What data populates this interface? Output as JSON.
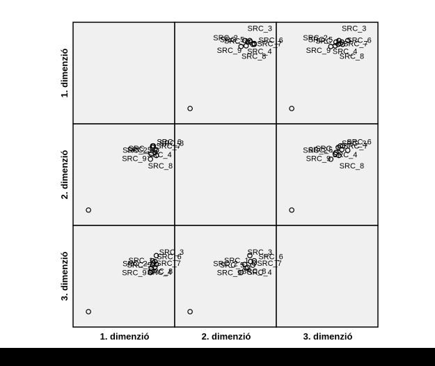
{
  "chart_data": {
    "type": "scatter",
    "subtype": "scatterplot-matrix",
    "dimensions": [
      "1. dimenzió",
      "2. dimenzió",
      "3. dimenzió"
    ],
    "range": [
      0,
      1
    ],
    "grid": false,
    "panel_background": "#f0f0f0",
    "marker": "open-circle",
    "points": [
      {
        "label": "SRC_1",
        "d1": 0.92,
        "d2": 0.84,
        "d3": 0.7
      },
      {
        "label": "SRC_2",
        "d1": 0.86,
        "d2": 0.71,
        "d3": 0.55
      },
      {
        "label": "SRC_3",
        "d1": 0.94,
        "d2": 0.76,
        "d3": 0.66
      },
      {
        "label": "SRC_4",
        "d1": 0.89,
        "d2": 0.87,
        "d3": 0.65
      },
      {
        "label": "SRC_5",
        "d1": 0.92,
        "d2": 0.8,
        "d3": 0.62
      },
      {
        "label": "SRC_6",
        "d1": 0.89,
        "d2": 0.89,
        "d3": 0.71
      },
      {
        "label": "SRC_7",
        "d1": 0.9,
        "d2": 0.89,
        "d3": 0.68
      },
      {
        "label": "SRC_8",
        "d1": 0.94,
        "d2": 0.83,
        "d3": 0.78
      },
      {
        "label": "SRC_9",
        "d1": 0.87,
        "d2": 0.78,
        "d3": 0.61
      },
      {
        "label": "",
        "d1": 0.02,
        "d2": 0.02,
        "d3": 0.02
      }
    ]
  },
  "colors": {
    "panel_fill": "#f0f0f0",
    "border": "#000000",
    "marker_stroke": "#000000",
    "footer_bar": "#000000"
  }
}
